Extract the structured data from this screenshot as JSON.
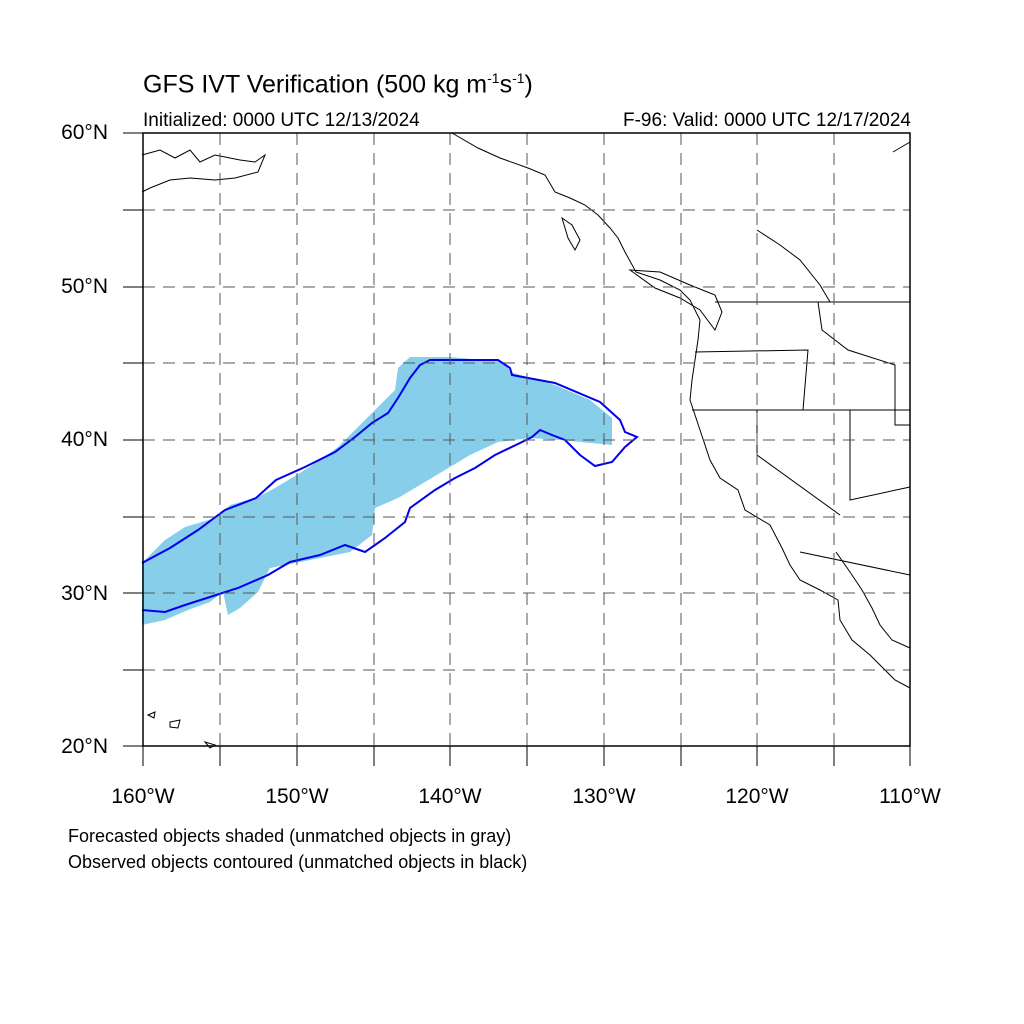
{
  "figure": {
    "title_main": "GFS IVT Verification (500 kg m",
    "title_exp1": "-1",
    "title_mid": "s",
    "title_exp2": "-1",
    "title_end": ")",
    "initialized": "Initialized: 0000 UTC 12/13/2024",
    "valid": "F-96: Valid: 0000 UTC 12/17/2024"
  },
  "map": {
    "region": "Northeast Pacific / West Coast of North America",
    "lon_range": [
      -160,
      -110
    ],
    "lat_range": [
      20,
      60
    ],
    "lat_labels": [
      "60°N",
      "50°N",
      "40°N",
      "30°N",
      "20°N"
    ],
    "lon_labels": [
      "160°W",
      "150°W",
      "140°W",
      "130°W",
      "120°W",
      "110°W"
    ],
    "forecast_fill_color": "#87ceeb",
    "observed_contour_color": "#0000ee",
    "coast_color": "#000000"
  },
  "notes": {
    "line1": "Forecasted objects shaded (unmatched objects in gray)",
    "line2": "Observed objects contoured (unmatched objects in black)"
  }
}
